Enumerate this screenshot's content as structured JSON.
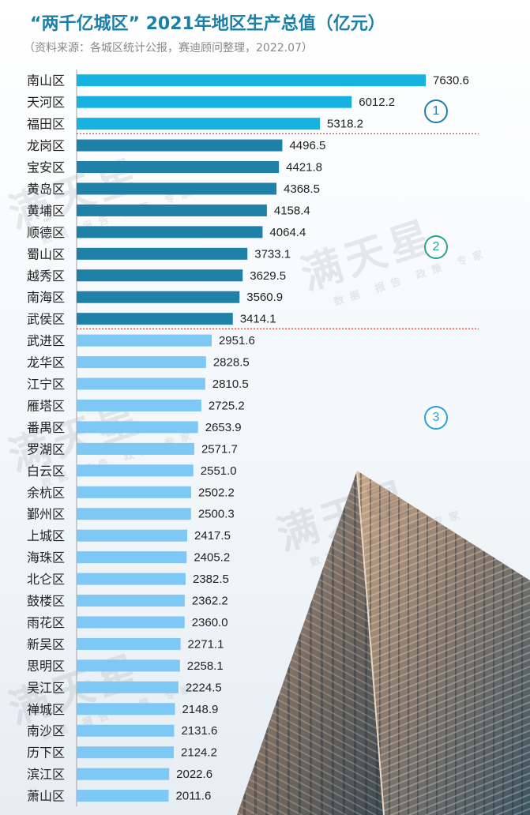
{
  "title": "“两千亿城区” 2021年地区生产总值（亿元）",
  "subtitle": "（资料来源：各城区统计公报，赛迪顾问整理，2022.07）",
  "watermark": {
    "brand": "满天星",
    "tagline": "数据 报告 政策 专家"
  },
  "tier_markers": [
    "1",
    "2",
    "3"
  ],
  "colors": {
    "tier1": "#16b3e0",
    "tier2": "#1f80a8",
    "tier3": "#7ec8f5",
    "divider": "#e0463a",
    "marker": "#1b7fa8",
    "marker3": "#2aa0d8"
  },
  "chart_data": {
    "type": "bar",
    "orientation": "horizontal",
    "categories": [
      "南山区",
      "天河区",
      "福田区",
      "龙岗区",
      "宝安区",
      "黄岛区",
      "黄埔区",
      "顺德区",
      "蜀山区",
      "越秀区",
      "南海区",
      "武侯区",
      "武进区",
      "龙华区",
      "江宁区",
      "雁塔区",
      "番禺区",
      "罗湖区",
      "白云区",
      "余杭区",
      "鄞州区",
      "上城区",
      "海珠区",
      "北仑区",
      "鼓楼区",
      "雨花区",
      "新吴区",
      "思明区",
      "吴江区",
      "禅城区",
      "南沙区",
      "历下区",
      "滨江区",
      "萧山区"
    ],
    "values": [
      7630.6,
      6012.2,
      5318.2,
      4496.5,
      4421.8,
      4368.5,
      4158.4,
      4064.4,
      3733.1,
      3629.5,
      3560.9,
      3414.1,
      2951.6,
      2828.5,
      2810.5,
      2725.2,
      2653.9,
      2571.7,
      2551.0,
      2502.2,
      2500.3,
      2417.5,
      2405.2,
      2382.5,
      2362.2,
      2360.0,
      2271.1,
      2258.1,
      2224.5,
      2148.9,
      2131.6,
      2124.2,
      2022.6,
      2011.6
    ],
    "value_labels": [
      "7630.6",
      "6012.2",
      "5318.2",
      "4496.5",
      "4421.8",
      "4368.5",
      "4158.4",
      "4064.4",
      "3733.1",
      "3629.5",
      "3560.9",
      "3414.1",
      "2951.6",
      "2828.5",
      "2810.5",
      "2725.2",
      "2653.9",
      "2571.7",
      "2551.0",
      "2502.2",
      "2500.3",
      "2417.5",
      "2405.2",
      "2382.5",
      "2362.2",
      "2360.0",
      "2271.1",
      "2258.1",
      "2224.5",
      "2148.9",
      "2131.6",
      "2124.2",
      "2022.6",
      "2011.6"
    ],
    "tiers": [
      1,
      1,
      1,
      2,
      2,
      2,
      2,
      2,
      2,
      2,
      2,
      2,
      3,
      3,
      3,
      3,
      3,
      3,
      3,
      3,
      3,
      3,
      3,
      3,
      3,
      3,
      3,
      3,
      3,
      3,
      3,
      3,
      3,
      3
    ],
    "xlim": [
      0,
      7630.6
    ],
    "grid": false,
    "legend": "none"
  }
}
